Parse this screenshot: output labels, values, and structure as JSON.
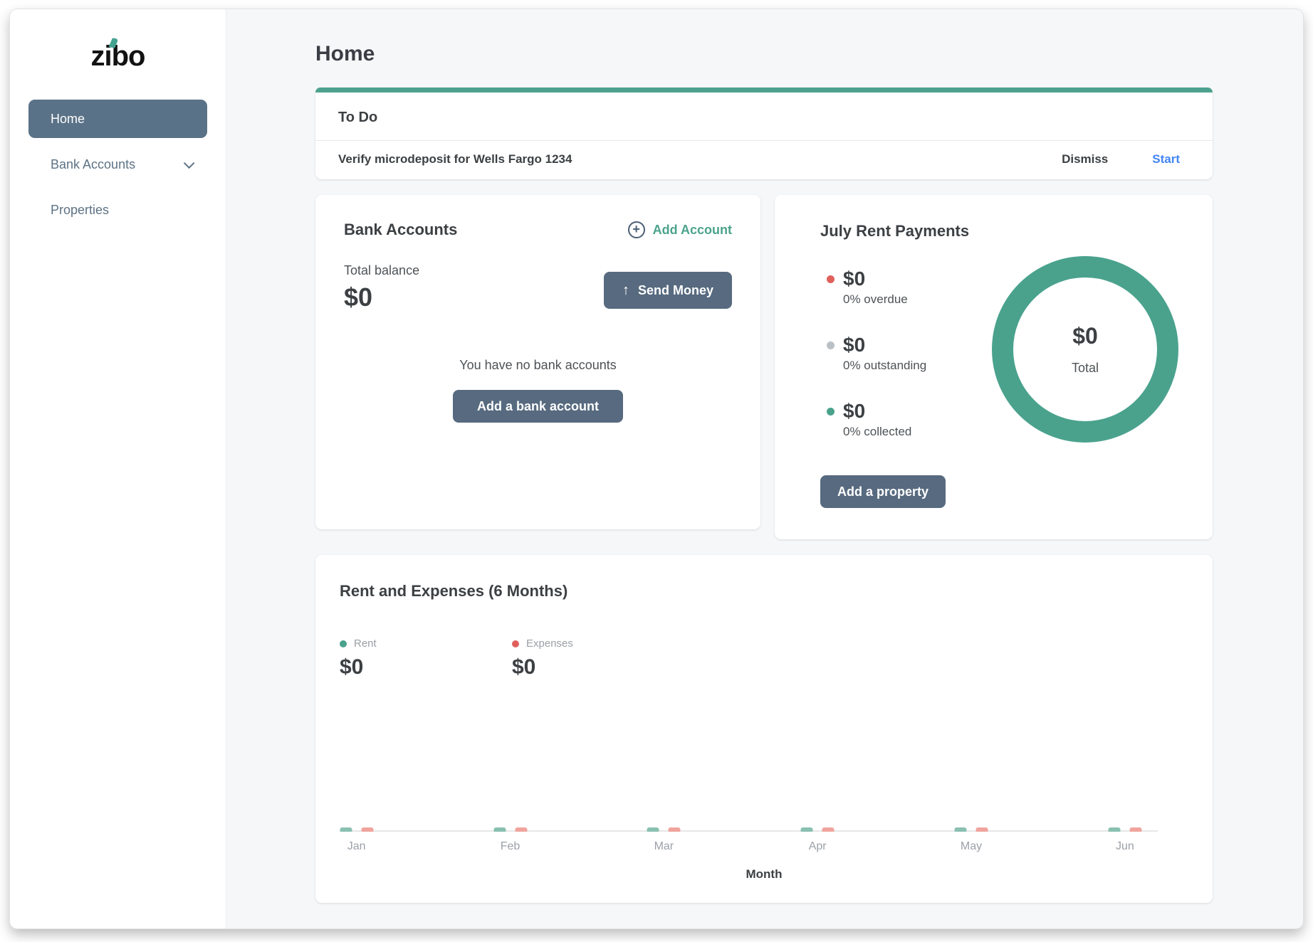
{
  "app": {
    "logo_text": "zibo",
    "accent_color": "#44A390",
    "teal": "#4DA28F",
    "slate": "#576A7F"
  },
  "sidebar": {
    "items": [
      {
        "id": "home",
        "label": "Home",
        "active": true,
        "chevron": false
      },
      {
        "id": "bank-accounts",
        "label": "Bank Accounts",
        "active": false,
        "chevron": true
      },
      {
        "id": "properties",
        "label": "Properties",
        "active": false,
        "chevron": false
      }
    ]
  },
  "header": {
    "title": "Home"
  },
  "todo": {
    "title": "To Do",
    "task": "Verify microdeposit for Wells Fargo 1234",
    "dismiss_label": "Dismiss",
    "start_label": "Start",
    "start_color": "#4285F4"
  },
  "bank_accounts": {
    "title": "Bank Accounts",
    "add_account_label": "Add Account",
    "total_balance_label": "Total balance",
    "total_balance_value": "$0",
    "send_money_label": "Send Money",
    "empty_message": "You have no bank accounts",
    "add_bank_account_label": "Add a bank account"
  },
  "rent_payments": {
    "title": "July Rent Payments",
    "stats": [
      {
        "value": "$0",
        "label": "0% overdue",
        "color": "#E0605C"
      },
      {
        "value": "$0",
        "label": "0% outstanding",
        "color": "#B9C0C6"
      },
      {
        "value": "$0",
        "label": "0% collected",
        "color": "#4AA28D"
      }
    ],
    "donut": {
      "value": "$0",
      "label": "Total",
      "ring_color": "#4AA28D"
    },
    "add_property_label": "Add a property"
  },
  "chart_data": {
    "type": "bar",
    "title": "Rent and Expenses (6 Months)",
    "categories": [
      "Jan",
      "Feb",
      "Mar",
      "Apr",
      "May",
      "Jun"
    ],
    "series": [
      {
        "name": "Rent",
        "total": "$0",
        "color": "#4AA28D",
        "bar_color": "#8AC0B1",
        "values": [
          0,
          0,
          0,
          0,
          0,
          0
        ]
      },
      {
        "name": "Expenses",
        "total": "$0",
        "color": "#E0605C",
        "bar_color": "#F0A49D",
        "values": [
          0,
          0,
          0,
          0,
          0,
          0
        ]
      }
    ],
    "xlabel": "Month",
    "ylabel": "",
    "ylim": [
      0,
      1
    ],
    "grid": false,
    "legend_position": "top-left"
  }
}
